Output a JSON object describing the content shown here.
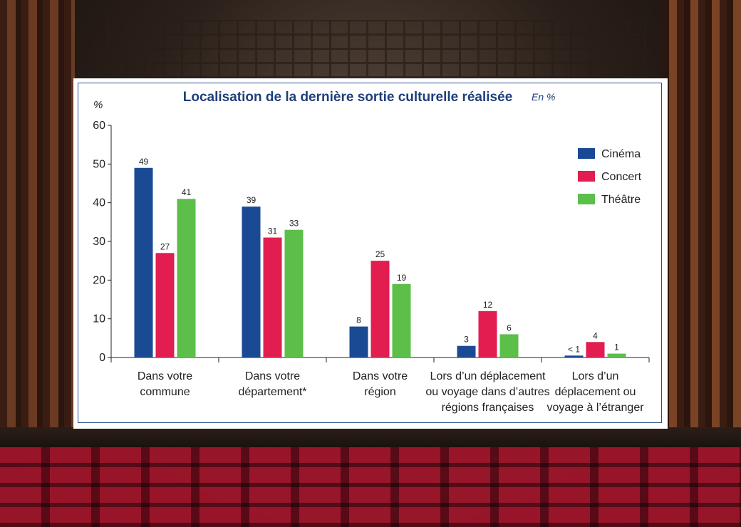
{
  "chart_data": {
    "type": "bar",
    "title": "Localisation de la dernière sortie culturelle réalisée",
    "subtitle": "En %",
    "ylabel": "%",
    "ylim": [
      0,
      60
    ],
    "yticks": [
      0,
      10,
      20,
      30,
      40,
      50,
      60
    ],
    "categories": [
      [
        "Dans votre",
        "commune"
      ],
      [
        "Dans votre",
        "département*"
      ],
      [
        "Dans votre",
        "région"
      ],
      [
        "Lors d’un déplacement",
        "ou voyage dans d’autres",
        "régions françaises"
      ],
      [
        "Lors d’un",
        "déplacement ou",
        "voyage à l’étranger"
      ]
    ],
    "series": [
      {
        "name": "Cinéma",
        "color": "#1b4a95",
        "values": [
          49,
          39,
          8,
          3,
          0.5
        ],
        "labels": [
          "49",
          "39",
          "8",
          "3",
          "< 1"
        ]
      },
      {
        "name": "Concert",
        "color": "#e21d4f",
        "values": [
          27,
          31,
          25,
          12,
          4
        ],
        "labels": [
          "27",
          "31",
          "25",
          "12",
          "4"
        ]
      },
      {
        "name": "Théâtre",
        "color": "#5cbf4a",
        "values": [
          41,
          33,
          19,
          6,
          1
        ],
        "labels": [
          "41",
          "33",
          "19",
          "6",
          "1"
        ]
      }
    ],
    "legend_position": "top-right",
    "grid": false
  }
}
